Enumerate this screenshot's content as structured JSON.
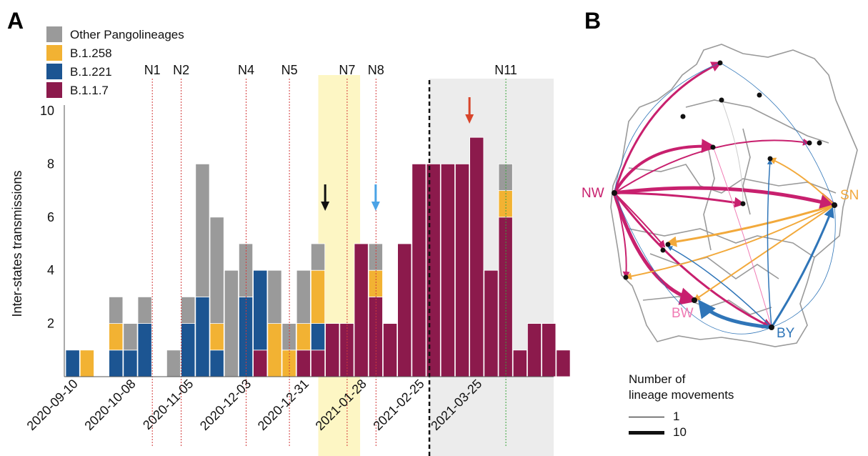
{
  "panel_a": {
    "letter": "A",
    "legend": [
      {
        "label": "Other Pangolineages",
        "color": "#9a9a9a"
      },
      {
        "label": "B.1.258",
        "color": "#f2b233"
      },
      {
        "label": "B.1.221",
        "color": "#1c5592"
      },
      {
        "label": "B.1.1.7",
        "color": "#8c1a4c"
      }
    ]
  },
  "panel_b": {
    "letter": "B",
    "regions": [
      {
        "label": "NW",
        "color": "#c8206e"
      },
      {
        "label": "SN",
        "color": "#f2a93b"
      },
      {
        "label": "BW",
        "color": "#f07bb4"
      },
      {
        "label": "BY",
        "color": "#2f75b8"
      }
    ],
    "legend_title": [
      "Number of",
      "lineage movements"
    ],
    "legend_items": [
      "1",
      "10"
    ]
  },
  "chart_data": {
    "type": "bar",
    "stacked": true,
    "ylabel": "Inter-states transmissions",
    "ylim": [
      0,
      10
    ],
    "yticks": [
      2,
      4,
      6,
      8,
      10
    ],
    "xticks": [
      "2020-09-10",
      "2020-10-08",
      "2020-11-05",
      "2020-12-03",
      "2020-12-31",
      "2021-01-28",
      "2021-02-25",
      "2021-03-25"
    ],
    "series_order": [
      "B.1.1.7",
      "B.1.221",
      "B.1.258",
      "Other Pangolineages"
    ],
    "bars": [
      {
        "B.1.1.7": 0,
        "B.1.221": 1,
        "B.1.258": 0,
        "Other Pangolineages": 0
      },
      {
        "B.1.1.7": 0,
        "B.1.221": 0,
        "B.1.258": 1,
        "Other Pangolineages": 0
      },
      {
        "B.1.1.7": 0,
        "B.1.221": 0,
        "B.1.258": 0,
        "Other Pangolineages": 0
      },
      {
        "B.1.1.7": 0,
        "B.1.221": 1,
        "B.1.258": 1,
        "Other Pangolineages": 1
      },
      {
        "B.1.1.7": 0,
        "B.1.221": 1,
        "B.1.258": 0,
        "Other Pangolineages": 1
      },
      {
        "B.1.1.7": 0,
        "B.1.221": 2,
        "B.1.258": 0,
        "Other Pangolineages": 1
      },
      {
        "B.1.1.7": 0,
        "B.1.221": 0,
        "B.1.258": 0,
        "Other Pangolineages": 0
      },
      {
        "B.1.1.7": 0,
        "B.1.221": 0,
        "B.1.258": 0,
        "Other Pangolineages": 1
      },
      {
        "B.1.1.7": 0,
        "B.1.221": 2,
        "B.1.258": 0,
        "Other Pangolineages": 1
      },
      {
        "B.1.1.7": 0,
        "B.1.221": 3,
        "B.1.258": 0,
        "Other Pangolineages": 5
      },
      {
        "B.1.1.7": 0,
        "B.1.221": 1,
        "B.1.258": 1,
        "Other Pangolineages": 4
      },
      {
        "B.1.1.7": 0,
        "B.1.221": 0,
        "B.1.258": 0,
        "Other Pangolineages": 4
      },
      {
        "B.1.1.7": 0,
        "B.1.221": 3,
        "B.1.258": 0,
        "Other Pangolineages": 2
      },
      {
        "B.1.1.7": 1,
        "B.1.221": 3,
        "B.1.258": 0,
        "Other Pangolineages": 0
      },
      {
        "B.1.1.7": 0,
        "B.1.221": 0,
        "B.1.258": 2,
        "Other Pangolineages": 2
      },
      {
        "B.1.1.7": 0,
        "B.1.221": 0,
        "B.1.258": 1,
        "Other Pangolineages": 1
      },
      {
        "B.1.1.7": 1,
        "B.1.221": 0,
        "B.1.258": 1,
        "Other Pangolineages": 2
      },
      {
        "B.1.1.7": 1,
        "B.1.221": 1,
        "B.1.258": 2,
        "Other Pangolineages": 1
      },
      {
        "B.1.1.7": 2,
        "B.1.221": 0,
        "B.1.258": 0,
        "Other Pangolineages": 0
      },
      {
        "B.1.1.7": 2,
        "B.1.221": 0,
        "B.1.258": 0,
        "Other Pangolineages": 0
      },
      {
        "B.1.1.7": 5,
        "B.1.221": 0,
        "B.1.258": 0,
        "Other Pangolineages": 0
      },
      {
        "B.1.1.7": 3,
        "B.1.221": 0,
        "B.1.258": 1,
        "Other Pangolineages": 1
      },
      {
        "B.1.1.7": 2,
        "B.1.221": 0,
        "B.1.258": 0,
        "Other Pangolineages": 0
      },
      {
        "B.1.1.7": 5,
        "B.1.221": 0,
        "B.1.258": 0,
        "Other Pangolineages": 0
      },
      {
        "B.1.1.7": 8,
        "B.1.221": 0,
        "B.1.258": 0,
        "Other Pangolineages": 0
      },
      {
        "B.1.1.7": 8,
        "B.1.221": 0,
        "B.1.258": 0,
        "Other Pangolineages": 0
      },
      {
        "B.1.1.7": 8,
        "B.1.221": 0,
        "B.1.258": 0,
        "Other Pangolineages": 0
      },
      {
        "B.1.1.7": 8,
        "B.1.221": 0,
        "B.1.258": 0,
        "Other Pangolineages": 0
      },
      {
        "B.1.1.7": 9,
        "B.1.221": 0,
        "B.1.258": 0,
        "Other Pangolineages": 0
      },
      {
        "B.1.1.7": 4,
        "B.1.221": 0,
        "B.1.258": 0,
        "Other Pangolineages": 0
      },
      {
        "B.1.1.7": 6,
        "B.1.221": 0,
        "B.1.258": 1,
        "Other Pangolineages": 1
      },
      {
        "B.1.1.7": 1,
        "B.1.221": 0,
        "B.1.258": 0,
        "Other Pangolineages": 0
      },
      {
        "B.1.1.7": 2,
        "B.1.221": 0,
        "B.1.258": 0,
        "Other Pangolineages": 0
      },
      {
        "B.1.1.7": 2,
        "B.1.221": 0,
        "B.1.258": 0,
        "Other Pangolineages": 0
      },
      {
        "B.1.1.7": 1,
        "B.1.221": 0,
        "B.1.258": 0,
        "Other Pangolineages": 0
      }
    ],
    "npi_lines": [
      {
        "label": "N1",
        "bar": 6,
        "color": "#d33a3a"
      },
      {
        "label": "N2",
        "bar": 8,
        "color": "#d33a3a"
      },
      {
        "label": "N4",
        "bar": 12.5,
        "color": "#d33a3a"
      },
      {
        "label": "N5",
        "bar": 15.5,
        "color": "#d33a3a"
      },
      {
        "label": "N7",
        "bar": 19.5,
        "color": "#d33a3a"
      },
      {
        "label": "N8",
        "bar": 21.5,
        "color": "#d33a3a"
      },
      {
        "label": "N11",
        "bar": 30.5,
        "color": "#3aa33a"
      }
    ],
    "highlight_yellow": [
      17.5,
      20.4
    ],
    "highlight_gray": [
      25.2,
      35.5
    ],
    "dashed_black_at": 25.2,
    "arrows": [
      {
        "bar": 17.5,
        "color": "#111111"
      },
      {
        "bar": 21,
        "color": "#4aa3e6"
      },
      {
        "bar": 27.5,
        "color": "#d8452b"
      }
    ]
  }
}
